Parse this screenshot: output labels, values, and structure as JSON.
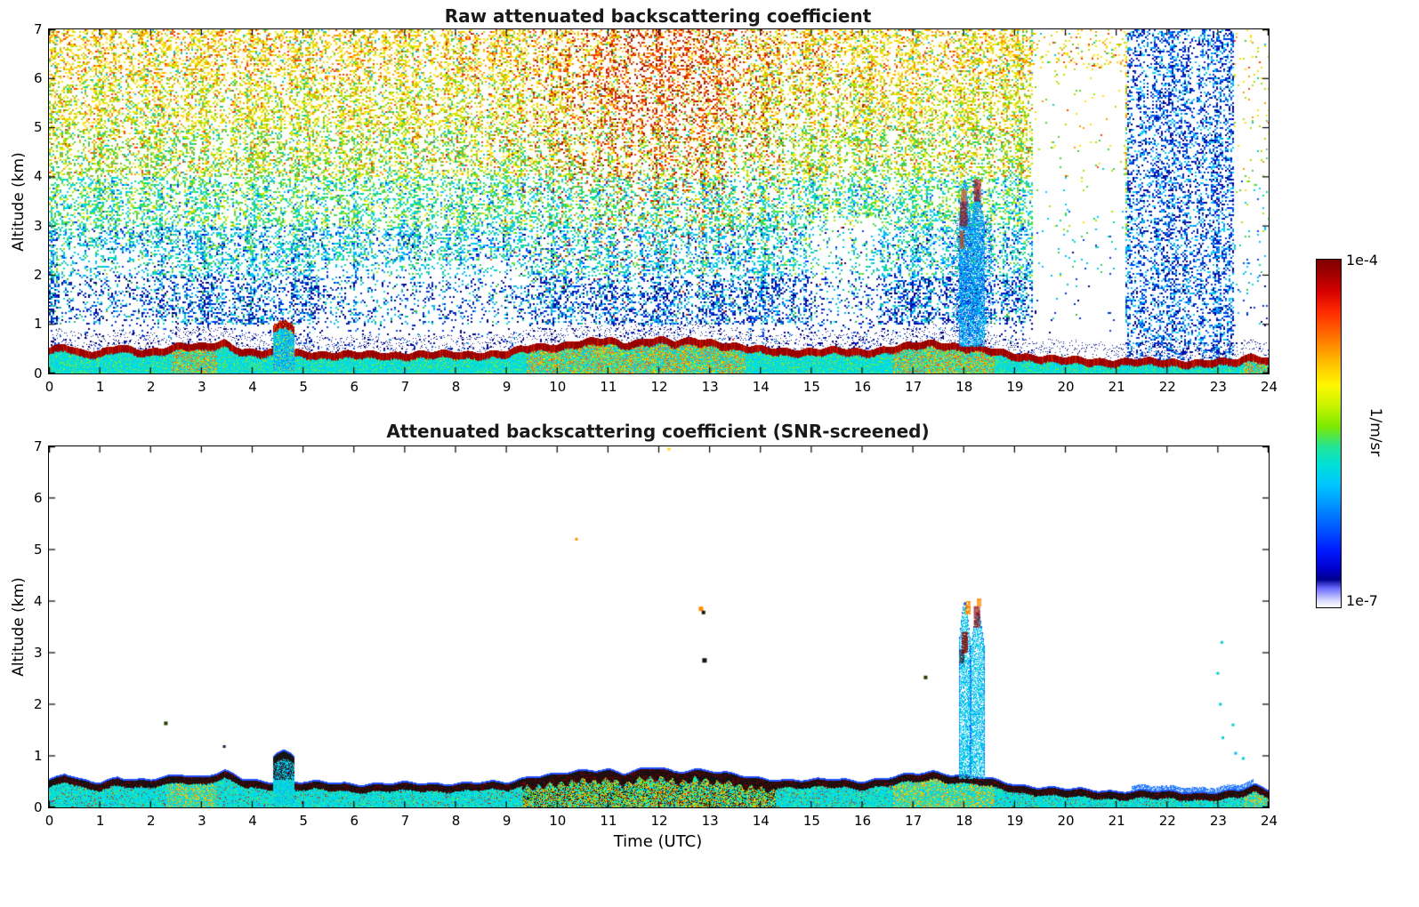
{
  "figure": {
    "xlabel": "Time (UTC)",
    "background": "#ffffff",
    "colorbar": {
      "top_label": "1e-4",
      "bottom_label": "1e-7",
      "unit": "1/m/sr"
    }
  },
  "panels": [
    {
      "title": "Raw attenuated backscattering coefficient",
      "ylabel": "Altitude (km)",
      "x_ticks": [
        0,
        1,
        2,
        3,
        4,
        5,
        6,
        7,
        8,
        9,
        10,
        11,
        12,
        13,
        14,
        15,
        16,
        17,
        18,
        19,
        20,
        21,
        22,
        23,
        24
      ],
      "y_ticks": [
        0,
        1,
        2,
        3,
        4,
        5,
        6,
        7
      ]
    },
    {
      "title": "Attenuated backscattering coefficient (SNR-screened)",
      "ylabel": "Altitude (km)",
      "x_ticks": [
        0,
        1,
        2,
        3,
        4,
        5,
        6,
        7,
        8,
        9,
        10,
        11,
        12,
        13,
        14,
        15,
        16,
        17,
        18,
        19,
        20,
        21,
        22,
        23,
        24
      ],
      "y_ticks": [
        0,
        1,
        2,
        3,
        4,
        5,
        6,
        7
      ]
    }
  ],
  "chart_data": [
    {
      "type": "heatmap",
      "title": "Raw attenuated backscattering coefficient",
      "xlabel": "Time (UTC)",
      "ylabel": "Altitude (km)",
      "xlim": [
        0,
        24
      ],
      "ylim": [
        0,
        7
      ],
      "colorbar": {
        "min": 1e-07,
        "max": 0.0001,
        "scale": "log",
        "unit": "1/m/sr",
        "colormap": "jet"
      },
      "boundary_layer_top_km": [
        [
          0,
          0.5
        ],
        [
          0.3,
          0.62
        ],
        [
          0.6,
          0.5
        ],
        [
          1,
          0.47
        ],
        [
          1.35,
          0.58
        ],
        [
          1.7,
          0.5
        ],
        [
          2,
          0.5
        ],
        [
          2.6,
          0.63
        ],
        [
          3,
          0.58
        ],
        [
          3.45,
          0.68
        ],
        [
          3.8,
          0.52
        ],
        [
          4.2,
          0.48
        ],
        [
          5,
          0.47
        ],
        [
          5.5,
          0.45
        ],
        [
          6,
          0.44
        ],
        [
          7,
          0.44
        ],
        [
          8,
          0.45
        ],
        [
          9,
          0.46
        ],
        [
          9.5,
          0.6
        ],
        [
          10,
          0.62
        ],
        [
          10.5,
          0.68
        ],
        [
          11,
          0.73
        ],
        [
          11.3,
          0.65
        ],
        [
          11.7,
          0.72
        ],
        [
          12,
          0.74
        ],
        [
          12.3,
          0.66
        ],
        [
          12.7,
          0.73
        ],
        [
          13,
          0.7
        ],
        [
          13.4,
          0.62
        ],
        [
          13.8,
          0.55
        ],
        [
          14.5,
          0.52
        ],
        [
          15,
          0.5
        ],
        [
          15.5,
          0.52
        ],
        [
          16,
          0.5
        ],
        [
          16.5,
          0.55
        ],
        [
          17,
          0.62
        ],
        [
          17.4,
          0.68
        ],
        [
          17.8,
          0.62
        ],
        [
          18.2,
          0.58
        ],
        [
          18.6,
          0.5
        ],
        [
          19,
          0.43
        ],
        [
          19.5,
          0.38
        ],
        [
          20,
          0.33
        ],
        [
          21,
          0.3
        ],
        [
          22,
          0.29
        ],
        [
          23,
          0.28
        ],
        [
          23.4,
          0.3
        ],
        [
          23.7,
          0.42
        ],
        [
          24,
          0.32
        ]
      ],
      "clouds": [
        {
          "t0": 4.42,
          "t1": 4.82,
          "base_km": 0.15,
          "top_km": 1.08,
          "kind": "fog/low cloud"
        },
        {
          "t0": 17.9,
          "t1": 18.12,
          "base_km": 0.55,
          "top_km": 3.95,
          "kind": "plume",
          "haze": true
        },
        {
          "t0": 18.14,
          "t1": 18.4,
          "base_km": 0.55,
          "top_km": 3.75,
          "kind": "plume",
          "haze": true
        }
      ],
      "blobs": [
        {
          "t": 18.0,
          "z0": 3.0,
          "z1": 3.5,
          "w": 0.14,
          "color": "#a00000"
        },
        {
          "t": 18.0,
          "z0": 3.5,
          "z1": 3.75,
          "w": 0.1,
          "color": "#ff6000"
        },
        {
          "t": 18.27,
          "z0": 3.5,
          "z1": 3.95,
          "w": 0.14,
          "color": "#a00000"
        },
        {
          "t": 17.96,
          "z0": 2.55,
          "z1": 2.9,
          "w": 0.08,
          "color": "#d04000"
        }
      ],
      "points": [
        {
          "t": 12.87,
          "z": 2.95,
          "color": "#ff7000",
          "size": 4
        }
      ],
      "noise_regions": [
        {
          "t0": 0,
          "t1": 24,
          "z0": 1,
          "z1": 7,
          "desc": "dense multicolor speckle noise: blue low, green/cyan mid, yellow high altitude"
        },
        {
          "t0": 10,
          "t1": 13.8,
          "z0": 4,
          "z1": 7,
          "desc": "orange-red enhanced noise plume"
        },
        {
          "t0": 19.35,
          "t1": 21.15,
          "z0": 0.8,
          "z1": 7,
          "desc": "near-empty white gap"
        },
        {
          "t0": 21.2,
          "t1": 23.3,
          "z0": 0.3,
          "z1": 7,
          "desc": "dense blue speckle column"
        },
        {
          "t0": 23.35,
          "t1": 24,
          "z0": 0.8,
          "z1": 7,
          "desc": "sparse speckle"
        }
      ]
    },
    {
      "type": "heatmap",
      "title": "Attenuated backscattering coefficient (SNR-screened)",
      "xlabel": "Time (UTC)",
      "ylabel": "Altitude (km)",
      "xlim": [
        0,
        24
      ],
      "ylim": [
        0,
        7
      ],
      "colorbar": {
        "min": 1e-07,
        "max": 0.0001,
        "scale": "log",
        "unit": "1/m/sr",
        "colormap": "jet"
      },
      "boundary_layer_top_km": [
        [
          0,
          0.5
        ],
        [
          0.3,
          0.62
        ],
        [
          0.6,
          0.5
        ],
        [
          1,
          0.47
        ],
        [
          1.35,
          0.58
        ],
        [
          1.7,
          0.5
        ],
        [
          2,
          0.5
        ],
        [
          2.6,
          0.63
        ],
        [
          3,
          0.58
        ],
        [
          3.45,
          0.68
        ],
        [
          3.8,
          0.52
        ],
        [
          4.2,
          0.48
        ],
        [
          5,
          0.47
        ],
        [
          5.5,
          0.45
        ],
        [
          6,
          0.44
        ],
        [
          7,
          0.44
        ],
        [
          8,
          0.45
        ],
        [
          9,
          0.46
        ],
        [
          9.5,
          0.6
        ],
        [
          10,
          0.62
        ],
        [
          10.5,
          0.68
        ],
        [
          11,
          0.73
        ],
        [
          11.3,
          0.65
        ],
        [
          11.7,
          0.72
        ],
        [
          12,
          0.74
        ],
        [
          12.3,
          0.66
        ],
        [
          12.7,
          0.73
        ],
        [
          13,
          0.7
        ],
        [
          13.4,
          0.62
        ],
        [
          13.8,
          0.55
        ],
        [
          14.5,
          0.52
        ],
        [
          15,
          0.5
        ],
        [
          15.5,
          0.52
        ],
        [
          16,
          0.5
        ],
        [
          16.5,
          0.55
        ],
        [
          17,
          0.62
        ],
        [
          17.4,
          0.68
        ],
        [
          17.8,
          0.62
        ],
        [
          18.2,
          0.58
        ],
        [
          18.6,
          0.5
        ],
        [
          19,
          0.43
        ],
        [
          19.5,
          0.38
        ],
        [
          20,
          0.33
        ],
        [
          21,
          0.3
        ],
        [
          22,
          0.29
        ],
        [
          23,
          0.28
        ],
        [
          23.4,
          0.3
        ],
        [
          23.7,
          0.42
        ],
        [
          24,
          0.32
        ]
      ],
      "clouds": [
        {
          "t0": 4.42,
          "t1": 4.82,
          "base_km": 0.15,
          "top_km": 1.08,
          "kind": "fog/low cloud"
        },
        {
          "t0": 17.9,
          "t1": 18.12,
          "base_km": 0.55,
          "top_km": 3.95,
          "kind": "plume"
        },
        {
          "t0": 18.14,
          "t1": 18.4,
          "base_km": 0.55,
          "top_km": 3.75,
          "kind": "plume"
        }
      ],
      "blobs": [
        {
          "t": 17.96,
          "z0": 2.8,
          "z1": 3.05,
          "w": 0.08,
          "color": "#181818"
        },
        {
          "t": 18.02,
          "z0": 3.0,
          "z1": 3.4,
          "w": 0.12,
          "color": "#8b0000"
        },
        {
          "t": 18.08,
          "z0": 3.75,
          "z1": 4.0,
          "w": 0.1,
          "color": "#ff8c00"
        },
        {
          "t": 18.26,
          "z0": 3.5,
          "z1": 3.9,
          "w": 0.12,
          "color": "#8b0000"
        },
        {
          "t": 18.3,
          "z0": 3.9,
          "z1": 4.05,
          "w": 0.08,
          "color": "#ff8c00"
        }
      ],
      "points": [
        {
          "t": 2.3,
          "z": 1.63,
          "color": "#203a00",
          "size": 4
        },
        {
          "t": 3.45,
          "z": 1.18,
          "color": "#102040",
          "size": 3
        },
        {
          "t": 10.38,
          "z": 5.2,
          "color": "#ff9000",
          "size": 3
        },
        {
          "t": 12.2,
          "z": 6.95,
          "color": "#ffd000",
          "size": 3
        },
        {
          "t": 12.83,
          "z": 3.85,
          "color": "#ff8c00",
          "size": 5
        },
        {
          "t": 12.88,
          "z": 3.78,
          "color": "#181800",
          "size": 4
        },
        {
          "t": 12.9,
          "z": 2.85,
          "color": "#141414",
          "size": 5
        },
        {
          "t": 17.25,
          "z": 2.52,
          "color": "#24400a",
          "size": 4
        },
        {
          "t": 23.0,
          "z": 2.6,
          "color": "#00cfd0",
          "size": 3
        },
        {
          "t": 23.05,
          "z": 2.0,
          "color": "#00cfd0",
          "size": 3
        },
        {
          "t": 23.08,
          "z": 3.2,
          "color": "#00cfd0",
          "size": 3
        },
        {
          "t": 23.1,
          "z": 1.35,
          "color": "#00cfd0",
          "size": 3
        },
        {
          "t": 23.3,
          "z": 1.6,
          "color": "#00cfd0",
          "size": 3
        },
        {
          "t": 23.35,
          "z": 1.05,
          "color": "#00bfff",
          "size": 3
        },
        {
          "t": 23.5,
          "z": 0.95,
          "color": "#00cfd0",
          "size": 3
        }
      ],
      "blue_smear": {
        "t0": 21.3,
        "t1": 23.7,
        "desc": "light blue band atop the surface layer"
      },
      "thick_band_region": {
        "t0": 9.3,
        "t1": 14.3,
        "desc": "thicker black/yellow mixed boundary layer"
      }
    }
  ]
}
